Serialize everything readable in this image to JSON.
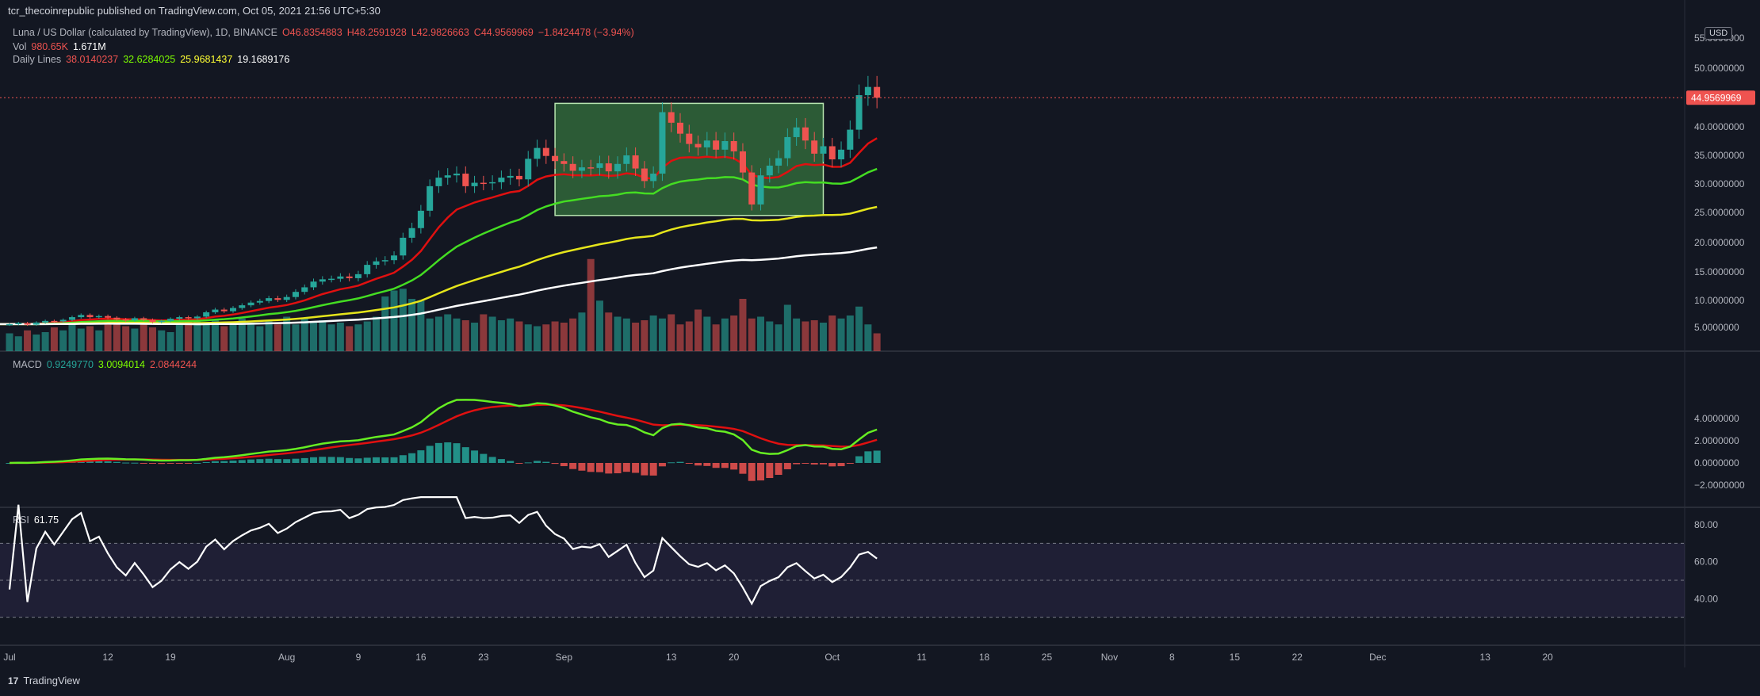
{
  "header": {
    "published": "tcr_thecoinrepublic published on TradingView.com, Oct 05, 2021 21:56 UTC+5:30"
  },
  "legend": {
    "title": "Luna / US Dollar (calculated by TradingView), 1D, BINANCE",
    "ohlc": {
      "o": "O46.8354883",
      "h": "H48.2591928",
      "l": "L42.9826663",
      "c": "C44.9569969",
      "chg": "−1.8424478 (−3.94%)"
    },
    "vol": {
      "label": "Vol",
      "v1": "980.65K",
      "v2": "1.671M"
    },
    "lines": {
      "label": "Daily Lines",
      "v1": "38.0140237",
      "v2": "32.6284025",
      "v3": "25.9681437",
      "v4": "19.1689176"
    }
  },
  "macd_legend": {
    "label": "MACD",
    "v1": "0.9249770",
    "v2": "3.0094014",
    "v3": "2.0844244"
  },
  "rsi_legend": {
    "label": "RSI",
    "v1": "61.75"
  },
  "currency": "USD",
  "last_price": "44.9569969",
  "footer": {
    "brand": "TradingView"
  },
  "colors": {
    "bg": "#131722",
    "up": "#26a69a",
    "down": "#ef5350",
    "ema1": "#e01010",
    "ema2": "#44dd22",
    "ema3": "#e5e51b",
    "ema4": "#ffffff",
    "box": "#2e7d32"
  },
  "chart_data": {
    "type": "candlestick",
    "price_axis_ticks": [
      "55.0000000",
      "50.0000000",
      "40.0000000",
      "35.0000000",
      "30.0000000",
      "25.0000000",
      "20.0000000",
      "15.0000000",
      "10.0000000",
      "5.0000000"
    ],
    "macd_axis_ticks": [
      "4.0000000",
      "2.0000000",
      "0.0000000",
      "−2.0000000"
    ],
    "rsi_axis_ticks": [
      "80.00",
      "60.00",
      "40.00"
    ],
    "time_axis": [
      {
        "label": "Jul",
        "day": 0
      },
      {
        "label": "12",
        "day": 11
      },
      {
        "label": "19",
        "day": 18
      },
      {
        "label": "Aug",
        "day": 31
      },
      {
        "label": "9",
        "day": 39
      },
      {
        "label": "16",
        "day": 46
      },
      {
        "label": "23",
        "day": 53
      },
      {
        "label": "Sep",
        "day": 62
      },
      {
        "label": "13",
        "day": 74
      },
      {
        "label": "20",
        "day": 81
      },
      {
        "label": "Oct",
        "day": 92
      },
      {
        "label": "11",
        "day": 102
      },
      {
        "label": "18",
        "day": 109
      },
      {
        "label": "25",
        "day": 116
      },
      {
        "label": "Nov",
        "day": 123
      },
      {
        "label": "8",
        "day": 130
      },
      {
        "label": "15",
        "day": 137
      },
      {
        "label": "22",
        "day": 144
      },
      {
        "label": "Dec",
        "day": 153
      },
      {
        "label": "13",
        "day": 165
      },
      {
        "label": "20",
        "day": 172
      }
    ],
    "closes": [
      5.6,
      5.8,
      5.5,
      5.9,
      6.2,
      6.1,
      6.4,
      6.9,
      7.3,
      6.9,
      7.1,
      6.8,
      6.5,
      6.3,
      6.7,
      6.4,
      6.0,
      6.2,
      6.6,
      6.9,
      6.7,
      7.0,
      7.8,
      8.3,
      8.0,
      8.6,
      9.1,
      9.6,
      9.9,
      10.4,
      10.1,
      10.6,
      11.5,
      12.3,
      13.3,
      13.7,
      13.8,
      14.2,
      13.9,
      14.6,
      16.2,
      16.8,
      17.0,
      17.8,
      20.8,
      22.4,
      25.3,
      29.6,
      31.1,
      31.5,
      31.8,
      29.6,
      30.2,
      30.1,
      30.3,
      31.1,
      31.4,
      30.8,
      34.4,
      36.3,
      34.9,
      34.0,
      33.5,
      32.3,
      32.9,
      32.8,
      33.6,
      32.2,
      33.5,
      35.0,
      32.7,
      30.5,
      31.8,
      42.5,
      40.7,
      38.8,
      37.0,
      36.4,
      37.6,
      36.0,
      37.5,
      35.7,
      32.0,
      26.4,
      31.5,
      33.2,
      34.5,
      38.2,
      39.9,
      37.6,
      35.3,
      36.6,
      34.3,
      36.0,
      39.5,
      45.4,
      46.8,
      44.96
    ],
    "volume": [
      3.0,
      2.5,
      3.5,
      2.8,
      3.2,
      4.0,
      3.5,
      4.5,
      3.8,
      4.2,
      3.5,
      4.8,
      5.0,
      4.2,
      3.8,
      4.5,
      4.0,
      3.5,
      3.2,
      4.5,
      5.0,
      5.5,
      4.8,
      5.2,
      4.2,
      4.5,
      5.5,
      4.8,
      4.2,
      5.0,
      4.5,
      5.8,
      4.5,
      5.5,
      4.8,
      5.2,
      4.5,
      4.8,
      4.2,
      4.5,
      5.0,
      5.8,
      9.2,
      10.2,
      10.5,
      8.8,
      8.5,
      5.5,
      5.8,
      6.2,
      5.5,
      5.2,
      4.8,
      6.2,
      5.8,
      5.2,
      5.5,
      5.0,
      4.5,
      4.2,
      4.5,
      5.0,
      4.8,
      5.5,
      6.5,
      15.5,
      8.5,
      6.5,
      5.8,
      5.5,
      4.8,
      5.2,
      6.0,
      5.5,
      6.2,
      4.5,
      5.0,
      7.0,
      5.8,
      4.5,
      5.5,
      6.0,
      8.8,
      5.5,
      5.8,
      5.0,
      4.5,
      7.8,
      5.5,
      5.0,
      5.2,
      4.8,
      6.0,
      5.5,
      6.0,
      7.5,
      4.5,
      3.0
    ],
    "ema_lines": [
      {
        "name": "38.0140237",
        "color": "#e01010",
        "end": 38.01
      },
      {
        "name": "32.6284025",
        "color": "#44dd22",
        "end": 32.63
      },
      {
        "name": "25.9681437",
        "color": "#e5e51b",
        "end": 25.97
      },
      {
        "name": "19.1689176",
        "color": "#ffffff",
        "end": 19.17
      }
    ],
    "macd": {
      "macd": 3.0094014,
      "signal": 2.0844244,
      "hist": 0.924977
    },
    "rsi": {
      "last": 61.75,
      "upper": 70,
      "lower": 30
    },
    "highlight_box": {
      "from_day": 61,
      "to_day": 91,
      "low": 24.5,
      "high": 44.0
    }
  }
}
